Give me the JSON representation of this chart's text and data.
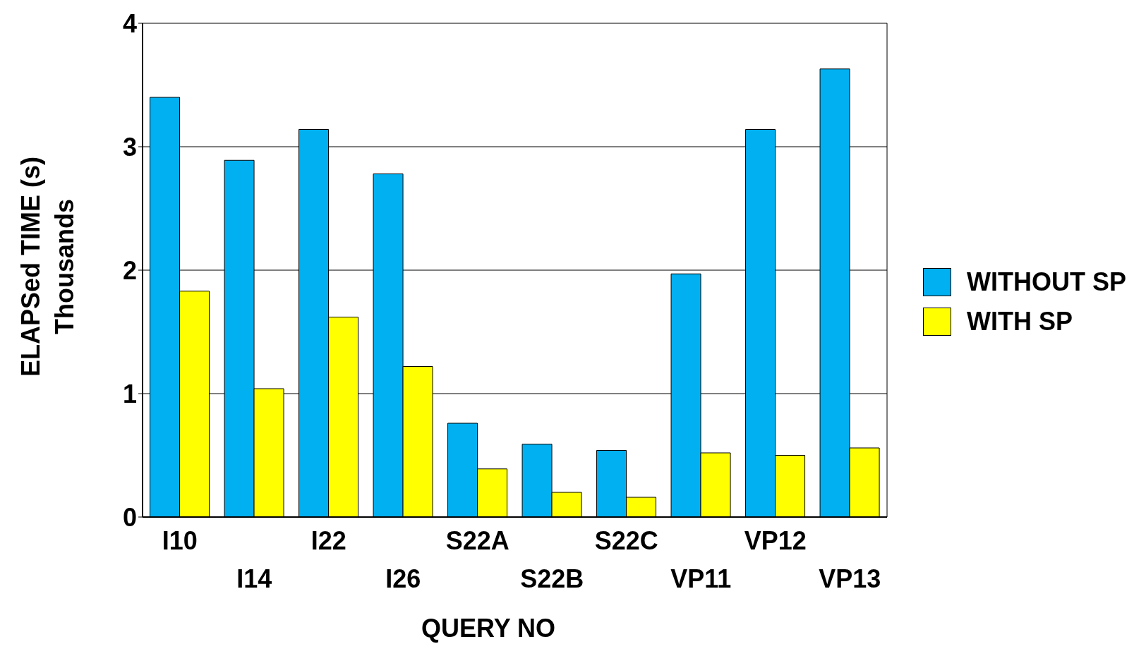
{
  "chart_data": {
    "type": "bar",
    "xlabel": "QUERY NO",
    "ylabel": "ELAPSed TIME (s)",
    "annotations": [
      "Thousands"
    ],
    "categories": [
      "I10",
      "I14",
      "I22",
      "I26",
      "S22A",
      "S22B",
      "S22C",
      "VP11",
      "VP12",
      "VP13"
    ],
    "series": [
      {
        "name": "WITHOUT SP",
        "color": "#00b0f0",
        "values": [
          3.4,
          2.89,
          3.14,
          2.78,
          0.76,
          0.59,
          0.54,
          1.97,
          3.14,
          3.63
        ]
      },
      {
        "name": "WITH SP",
        "color": "#ffff00",
        "values": [
          1.83,
          1.04,
          1.62,
          1.22,
          0.39,
          0.2,
          0.16,
          0.52,
          0.5,
          0.56
        ]
      }
    ],
    "ylim": [
      0,
      4
    ],
    "yticks": [
      0,
      1,
      2,
      3,
      4
    ],
    "grid": "y",
    "legend": "right"
  }
}
